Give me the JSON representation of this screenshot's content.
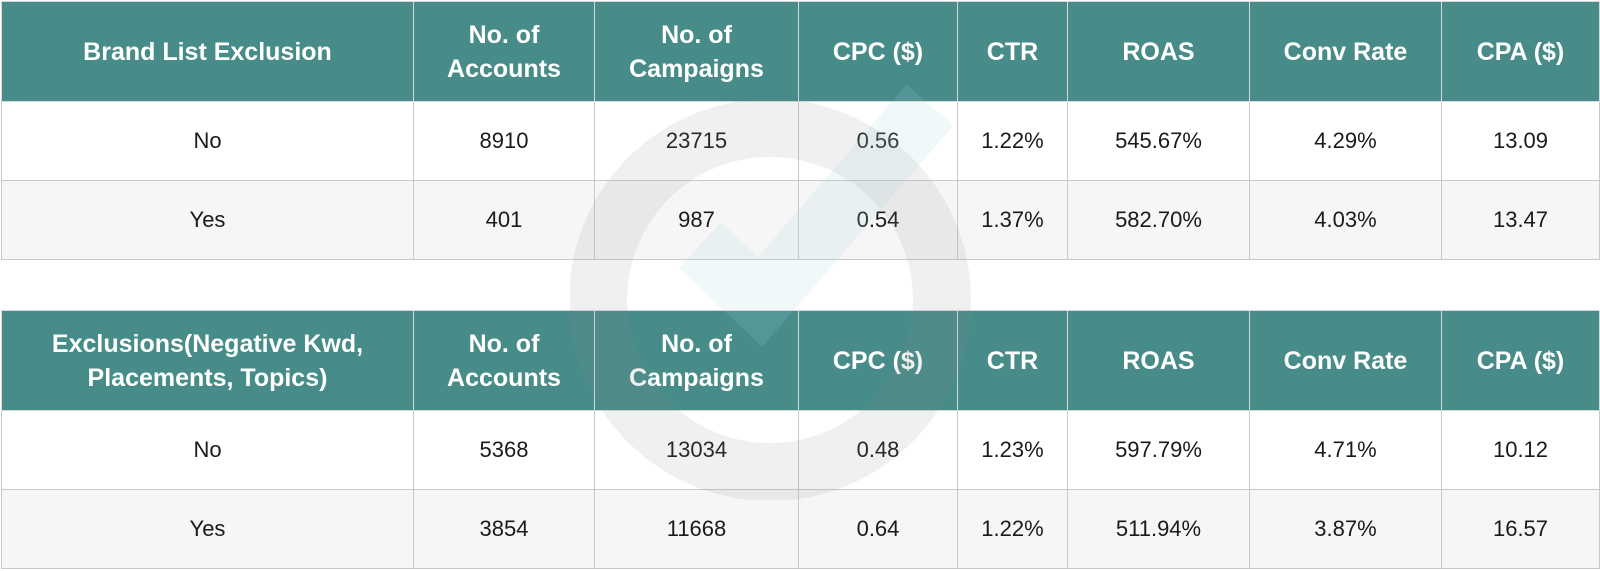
{
  "tables": [
    {
      "headers": [
        "Brand List Exclusion",
        "No. of Accounts",
        "No. of Campaigns",
        "CPC ($)",
        "CTR",
        "ROAS",
        "Conv Rate",
        "CPA ($)"
      ],
      "rows": [
        [
          "No",
          "8910",
          "23715",
          "0.56",
          "1.22%",
          "545.67%",
          "4.29%",
          "13.09"
        ],
        [
          "Yes",
          "401",
          "987",
          "0.54",
          "1.37%",
          "582.70%",
          "4.03%",
          "13.47"
        ]
      ]
    },
    {
      "headers": [
        "Exclusions(Negative Kwd, Placements, Topics)",
        "No. of Accounts",
        "No. of Campaigns",
        "CPC ($)",
        "CTR",
        "ROAS",
        "Conv Rate",
        "CPA ($)"
      ],
      "rows": [
        [
          "No",
          "5368",
          "13034",
          "0.48",
          "1.23%",
          "597.79%",
          "4.71%",
          "10.12"
        ],
        [
          "Yes",
          "3854",
          "11668",
          "0.64",
          "1.22%",
          "511.94%",
          "3.87%",
          "16.57"
        ]
      ]
    }
  ],
  "colors": {
    "header_bg": "#478c88",
    "header_text": "#ffffff",
    "row_alt_bg": "#f6f6f6",
    "border": "#c9c9c9"
  },
  "watermark": {
    "icon": "logo-watermark-icon"
  }
}
